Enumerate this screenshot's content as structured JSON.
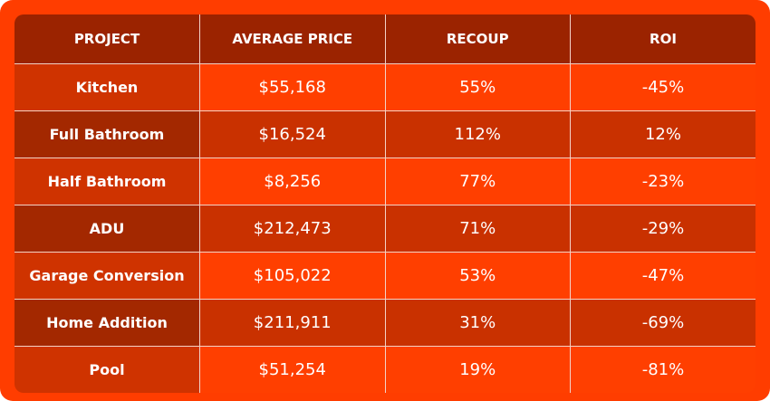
{
  "table": {
    "header": [
      "PROJECT",
      "AVERAGE PRICE",
      "RECOUP",
      "ROI"
    ],
    "rows": [
      [
        "Kitchen",
        "$55,168",
        "55%",
        "-45%"
      ],
      [
        "Full Bathroom",
        "$16,524",
        "112%",
        "12%"
      ],
      [
        "Half Bathroom",
        "$8,256",
        "77%",
        "-23%"
      ],
      [
        "ADU",
        "$212,473",
        "71%",
        "-29%"
      ],
      [
        "Garage Conversion",
        "$105,022",
        "53%",
        "-47%"
      ],
      [
        "Home Addition",
        "$211,911",
        "31%",
        "-69%"
      ],
      [
        "Pool",
        "$51,254",
        "19%",
        "-81%"
      ]
    ]
  }
}
